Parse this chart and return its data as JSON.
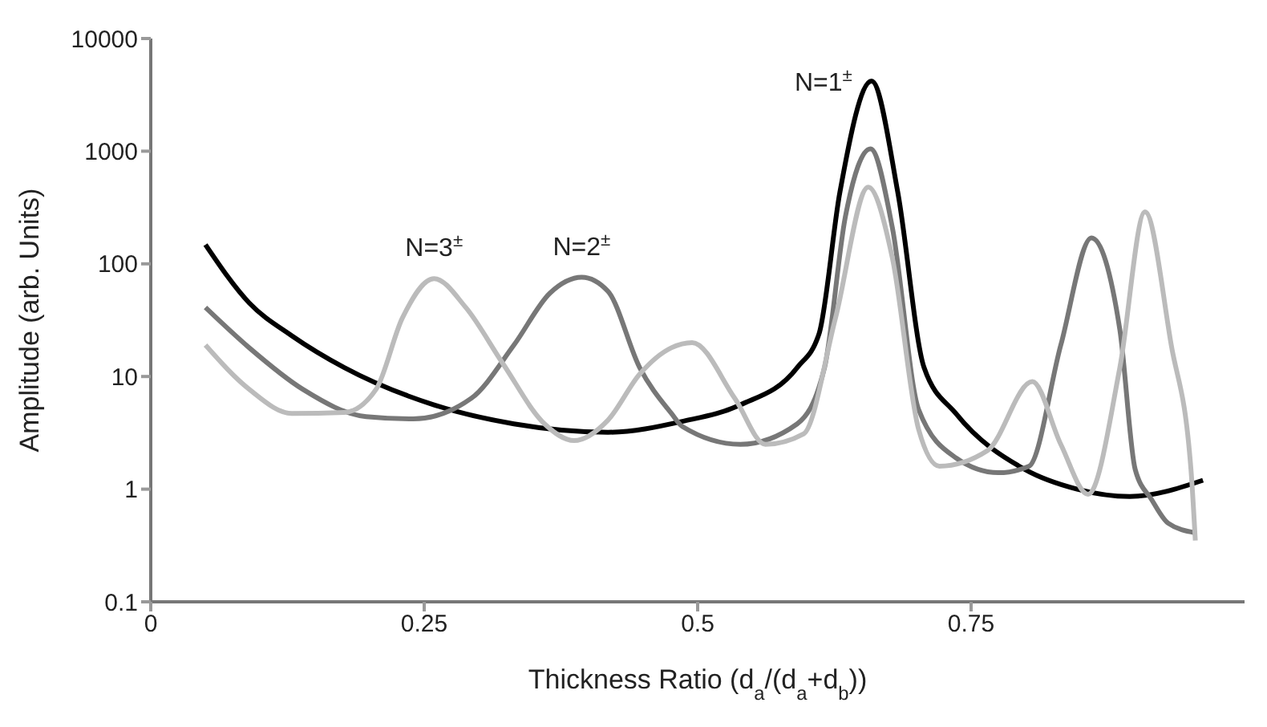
{
  "chart_data": {
    "type": "line",
    "xlabel": "Thickness Ratio (d$_{a}$/(d$_{a}$+d$_{b}$))",
    "ylabel": "Amplitude (arb. Units)",
    "log": "y",
    "xlim": [
      0,
      1
    ],
    "xticks": [
      0,
      0.25,
      0.5,
      0.75
    ],
    "ylim": [
      0.1,
      10000
    ],
    "yticks": [
      0.1,
      1,
      10,
      100,
      1000,
      10000
    ],
    "annotations": [
      {
        "text": "N=3$^{±}$",
        "x": 0.259,
        "y": 74
      },
      {
        "text": "N=2$^{±}$",
        "x": 0.394,
        "y": 76
      },
      {
        "text": "N=1$^{±}$",
        "x": 0.659,
        "y": 4200
      }
    ],
    "series": [
      {
        "color": "#000000",
        "x": [
          0.05,
          0.09,
          0.129,
          0.177,
          0.259,
          0.332,
          0.418,
          0.486,
          0.539,
          0.591,
          0.611,
          0.63,
          0.659,
          0.683,
          0.707,
          0.736,
          0.799,
          0.847,
          0.895,
          0.962
        ],
        "values": [
          148,
          45,
          23,
          12,
          5.6,
          3.8,
          3.2,
          4,
          5.6,
          12,
          24,
          430,
          4200,
          430,
          12,
          4.7,
          1.5,
          1,
          0.86,
          1.2
        ]
      },
      {
        "color": "#777777",
        "x": [
          0.05,
          0.09,
          0.139,
          0.197,
          0.24,
          0.293,
          0.332,
          0.365,
          0.394,
          0.418,
          0.447,
          0.476,
          0.486,
          0.539,
          0.591,
          0.616,
          0.635,
          0.658,
          0.678,
          0.702,
          0.736,
          0.775,
          0.803,
          0.832,
          0.86,
          0.886,
          0.9,
          0.915,
          0.93,
          0.955
        ],
        "values": [
          41,
          18,
          7.7,
          4.4,
          4.2,
          6.4,
          19,
          55,
          76,
          57,
          12,
          4.7,
          3.6,
          2.5,
          3.8,
          12,
          260,
          1050,
          210,
          5.1,
          1.9,
          1.4,
          1.6,
          19,
          170,
          26,
          1.5,
          0.81,
          0.5,
          0.41
        ]
      },
      {
        "color": "#bbbbbb",
        "x": [
          0.05,
          0.09,
          0.129,
          0.177,
          0.206,
          0.23,
          0.259,
          0.288,
          0.322,
          0.36,
          0.387,
          0.418,
          0.447,
          0.476,
          0.495,
          0.534,
          0.562,
          0.597,
          0.626,
          0.656,
          0.678,
          0.702,
          0.721,
          0.765,
          0.806,
          0.832,
          0.857,
          0.886,
          0.909,
          0.933,
          0.951,
          0.955
        ],
        "values": [
          19,
          7.7,
          4.7,
          4.8,
          7.7,
          33,
          74,
          41,
          13,
          3.8,
          2.7,
          4.1,
          10.5,
          18,
          20,
          6.4,
          2.5,
          3.1,
          33,
          480,
          113,
          3.4,
          1.6,
          2.2,
          9,
          2.5,
          0.9,
          12,
          290,
          19,
          1.5,
          0.35
        ]
      }
    ]
  }
}
